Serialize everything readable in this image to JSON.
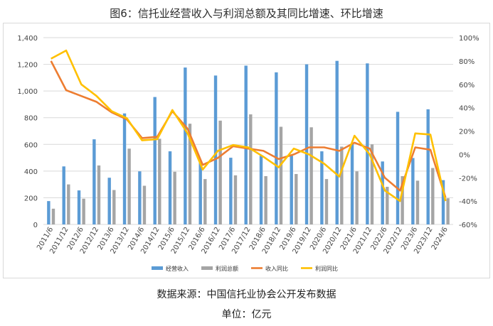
{
  "header": {
    "title": "图6：信托业经营收入与利润总额及其同比增速、环比增速"
  },
  "footer": {
    "source": "数据来源：中国信托业协会公开发布数据",
    "unit": "单位：亿元"
  },
  "colors": {
    "revenue": "#5b9bd5",
    "profit": "#a5a5a5",
    "revenue_growth": "#ed7d31",
    "profit_growth": "#ffc000",
    "grid": "#d9d9d9"
  },
  "chart_data": {
    "type": "bar",
    "categories": [
      "2011/6",
      "2011/12",
      "2012/6",
      "2012/12",
      "2013/6",
      "2013/12",
      "2014/6",
      "2014/12",
      "2015/6",
      "2015/12",
      "2016/6",
      "2016/12",
      "2017/6",
      "2017/12",
      "2018/6",
      "2018/12",
      "2019/6",
      "2019/12",
      "2020/6",
      "2020/12",
      "2021/6",
      "2021/12",
      "2022/6",
      "2022/12",
      "2023/6",
      "2023/12",
      "2024/6"
    ],
    "series": [
      {
        "name": "经营收入",
        "kind": "bar",
        "axis": "left",
        "values": [
          175,
          435,
          255,
          638,
          350,
          832,
          398,
          955,
          548,
          1176,
          475,
          1116,
          500,
          1190,
          515,
          1140,
          522,
          1200,
          548,
          1226,
          600,
          1207,
          472,
          844,
          498,
          863,
          332
        ]
      },
      {
        "name": "利润总额",
        "kind": "bar",
        "axis": "left",
        "values": [
          118,
          300,
          193,
          442,
          258,
          568,
          290,
          642,
          395,
          755,
          340,
          778,
          368,
          825,
          362,
          732,
          378,
          728,
          340,
          583,
          398,
          600,
          282,
          362,
          328,
          423,
          196
        ]
      },
      {
        "name": "收入同比",
        "kind": "line",
        "axis": "right",
        "values": [
          80,
          55,
          50,
          45,
          36,
          30,
          14,
          15,
          37,
          22,
          -9,
          -3,
          7,
          5,
          3,
          -4,
          0,
          6,
          6,
          3,
          10,
          5,
          -20,
          -31,
          6,
          4,
          -37
        ]
      },
      {
        "name": "利润同比",
        "kind": "line",
        "axis": "right",
        "values": [
          82,
          89,
          60,
          50,
          37,
          31,
          12,
          13,
          38,
          18,
          -13,
          3,
          8,
          6,
          -2,
          -11,
          5,
          0,
          -8,
          -19,
          16,
          0,
          -31,
          -40,
          18,
          17,
          -40
        ]
      }
    ],
    "y_left": {
      "min": 0,
      "max": 1400,
      "ticks": [
        "0",
        "200",
        "400",
        "600",
        "800",
        "1,000",
        "1,200",
        "1,400"
      ]
    },
    "y_right": {
      "min": -60,
      "max": 100,
      "ticks": [
        "-60%",
        "-40%",
        "-20%",
        "0%",
        "20%",
        "40%",
        "60%",
        "80%",
        "100%"
      ]
    },
    "grid": true,
    "legend": "bottom"
  }
}
